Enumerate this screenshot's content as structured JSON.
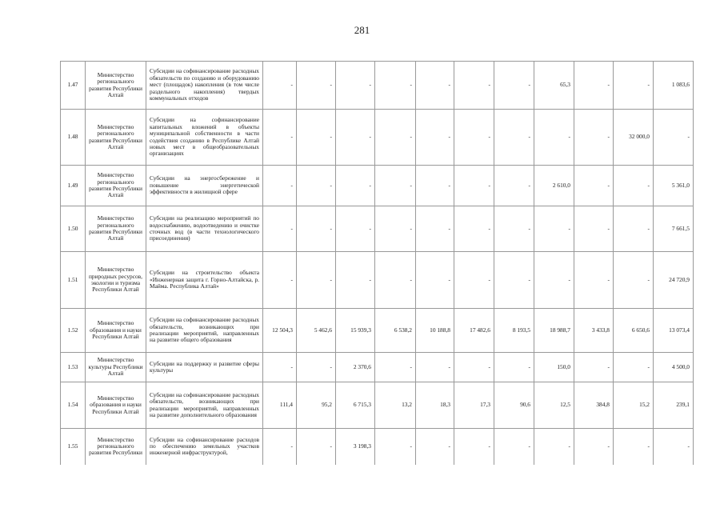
{
  "page_number": "281",
  "rows": [
    {
      "no": "1.47",
      "ministry": "Министерство регионального развития Республики Алтай",
      "description": "Субсидии на софинансирование расходных обязательств по созданию и оборудованию мест (площадок) накопления (в том числе раздельного накопления) твердых коммунальных отходов",
      "values": [
        "-",
        "-",
        "-",
        "-",
        "-",
        "-",
        "-",
        "65,3",
        "-",
        "-",
        "1 083,6"
      ]
    },
    {
      "no": "1.48",
      "ministry": "Министерство регионального развития Республики Алтай",
      "description": "Субсидии на софинансирование капитальных вложений в объекты муниципальной собственности в части содействия созданию в Республике Алтай новых мест в общеобразовательных организациях",
      "values": [
        "-",
        "-",
        "-",
        "-",
        "-",
        "-",
        "-",
        "-",
        "-",
        "32 000,0",
        "-"
      ]
    },
    {
      "no": "1.49",
      "ministry": "Министерство регионального развития Республики Алтай",
      "description": "Субсидии на энергосбережение и повышение энергетической эффективности в жилищной сфере",
      "values": [
        "-",
        "-",
        "-",
        "-",
        "-",
        "-",
        "-",
        "2 610,0",
        "-",
        "-",
        "5 361,0"
      ]
    },
    {
      "no": "1.50",
      "ministry": "Министерство регионального развития Республики Алтай",
      "description": "Субсидии на реализацию мероприятий по водоснабжению, водоотведению и очистке сточных вод (в части технологического присоединения)",
      "values": [
        "-",
        "-",
        "-",
        "-",
        "-",
        "-",
        "-",
        "-",
        "-",
        "-",
        "7 661,5"
      ]
    },
    {
      "no": "1.51",
      "ministry": "Министерство природных ресурсов, экологии и туризма Республики Алтай",
      "description": "Субсидии на строительство объекта «Инженерная защита г. Горно-Алтайска, р. Майма. Республика Алтай»",
      "values": [
        "-",
        "-",
        "-",
        "-",
        "-",
        "-",
        "-",
        "-",
        "-",
        "-",
        "24 720,9"
      ]
    },
    {
      "no": "1.52",
      "ministry": "Министерство образования и науки Республики Алтай",
      "description": "Субсидии на софинансирование расходных обязательств, возникающих при реализации мероприятий, направленных на развитие общего образования",
      "values": [
        "12 504,3",
        "5 462,6",
        "15 939,3",
        "6 538,2",
        "10 188,8",
        "17 482,6",
        "8 193,5",
        "18 988,7",
        "3 433,8",
        "6 650,6",
        "13 073,4"
      ]
    },
    {
      "no": "1.53",
      "ministry": "Министерство культуры Республики Алтай",
      "description": "Субсидии на поддержку и развитие сферы культуры",
      "values": [
        "-",
        "-",
        "2 370,6",
        "-",
        "-",
        "-",
        "-",
        "150,0",
        "-",
        "-",
        "4 500,0"
      ]
    },
    {
      "no": "1.54",
      "ministry": "Министерство образования и науки Республики Алтай",
      "description": "Субсидии на софинансирование расходных обязательств, возникающих при реализации мероприятий, направленных на развитие дополнительного образования",
      "values": [
        "111,4",
        "95,2",
        "6 715,3",
        "13,2",
        "18,3",
        "17,3",
        "90,6",
        "12,5",
        "384,8",
        "15,2",
        "239,1"
      ]
    },
    {
      "no": "1.55",
      "ministry": "Министерство регионального развития Республики",
      "description": "Субсидии на софинансирование расходов по обеспечению земельных участков инженерной инфраструктурой,",
      "values": [
        "-",
        "-",
        "3 198,3",
        "-",
        "-",
        "-",
        "-",
        "-",
        "-",
        "-",
        "-"
      ]
    }
  ]
}
